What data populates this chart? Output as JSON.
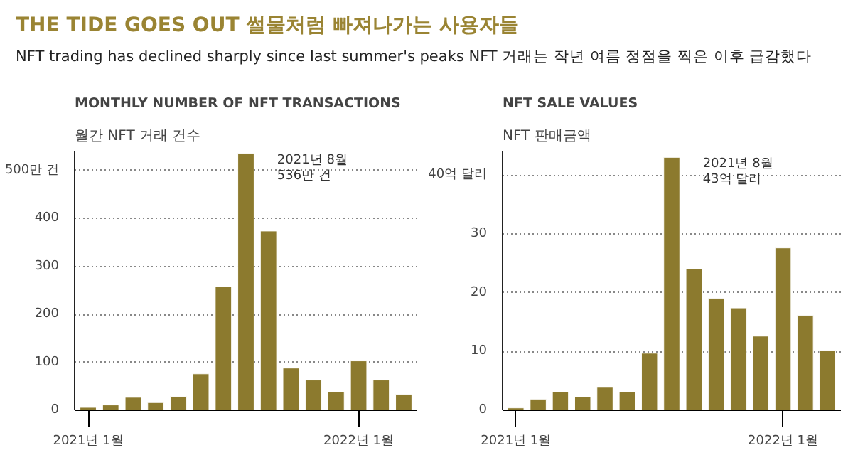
{
  "chart_data": [
    {
      "type": "other",
      "title": "THE TIDE GOES OUT 썰물처럼 빠져나가는 사용자들",
      "subtitle": "NFT trading has declined sharply since last summer's peaks NFT 거래는 작년 여름 정점을 찍은 이후 급감했다"
    },
    {
      "type": "bar",
      "title": "MONTHLY NUMBER OF NFT TRANSACTIONS",
      "subtitle": "월간 NFT 거래 건수",
      "color": "#8c7a2e",
      "categories": [
        "2021년 1월",
        null,
        null,
        null,
        null,
        null,
        null,
        null,
        null,
        null,
        null,
        null,
        "2022년 1월",
        null,
        null
      ],
      "values": [
        6,
        11,
        27,
        16,
        29,
        76,
        258,
        536,
        374,
        88,
        63,
        38,
        103,
        63,
        33
      ],
      "ylim": [
        0,
        540
      ],
      "yticks": [
        0,
        100,
        200,
        300,
        {
          "value": 400,
          "label": "400"
        },
        {
          "value": 500,
          "label": "500만 건"
        }
      ],
      "grid": "y",
      "annotations": [
        "2021년 8월\n536만 건"
      ]
    },
    {
      "type": "bar",
      "title": "NFT SALE VALUES",
      "subtitle": "NFT 판매금액",
      "color": "#8c7a2e",
      "categories": [
        "2021년 1월",
        null,
        null,
        null,
        null,
        null,
        null,
        null,
        null,
        null,
        null,
        null,
        "2022년 1월",
        null,
        null
      ],
      "values": [
        0.4,
        1.9,
        3.1,
        2.3,
        3.9,
        3.1,
        9.7,
        43,
        24,
        19,
        17.4,
        12.6,
        27.6,
        16.1,
        10.1
      ],
      "ylim": [
        0,
        44
      ],
      "yticks": [
        0,
        10,
        20,
        30,
        {
          "value": 40,
          "label": "40억 달러"
        }
      ],
      "grid": "y",
      "annotations": [
        "2021년 8월\n43억 달러"
      ]
    }
  ]
}
